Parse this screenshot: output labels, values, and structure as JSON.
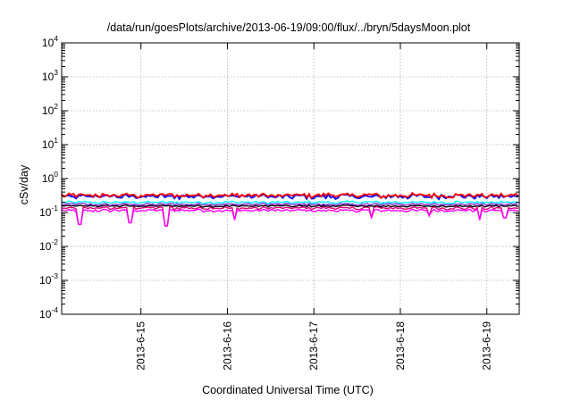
{
  "chart_data": {
    "type": "line",
    "title": "/data/run/goesPlots/archive/2013-06-19/09:00/flux/../bryn/5daysMoon.plot",
    "xlabel": "Coordinated Universal Time (UTC)",
    "ylabel": "cSv/day",
    "yscale": "log",
    "ylim": [
      0.0001,
      10000
    ],
    "xlim": [
      "2013-06-14T02:00",
      "2013-06-19T09:00"
    ],
    "grid": true,
    "y_ticks": [
      {
        "value": 0.0001,
        "base": "10",
        "exp": "-4"
      },
      {
        "value": 0.001,
        "base": "10",
        "exp": "-3"
      },
      {
        "value": 0.01,
        "base": "10",
        "exp": "-2"
      },
      {
        "value": 0.1,
        "base": "10",
        "exp": "-1"
      },
      {
        "value": 1,
        "base": "10",
        "exp": "0"
      },
      {
        "value": 10,
        "base": "10",
        "exp": "1"
      },
      {
        "value": 100,
        "base": "10",
        "exp": "2"
      },
      {
        "value": 1000,
        "base": "10",
        "exp": "3"
      },
      {
        "value": 10000,
        "base": "10",
        "exp": "4"
      }
    ],
    "x_ticks": [
      {
        "value": "2013-06-15T00:00",
        "label": "2013-6-15"
      },
      {
        "value": "2013-06-16T00:00",
        "label": "2013-6-16"
      },
      {
        "value": "2013-06-17T00:00",
        "label": "2013-6-17"
      },
      {
        "value": "2013-06-18T00:00",
        "label": "2013-6-18"
      },
      {
        "value": "2013-06-19T00:00",
        "label": "2013-6-19"
      }
    ],
    "series": [
      {
        "color": "#e0007a",
        "base": 0.135,
        "variability": 0.12,
        "dips": [
          [
            "2013-06-14T07:00",
            0.045
          ],
          [
            "2013-06-14T21:00",
            0.05
          ],
          [
            "2013-06-15T07:00",
            0.04
          ],
          [
            "2013-06-16T02:00",
            0.06
          ],
          [
            "2013-06-17T16:00",
            0.07
          ],
          [
            "2013-06-18T08:00",
            0.08
          ],
          [
            "2013-06-18T22:00",
            0.06
          ],
          [
            "2013-06-19T05:00",
            0.07
          ]
        ]
      },
      {
        "color": "#ff00ff",
        "base": 0.115,
        "variability": 0.1,
        "dips": [
          [
            "2013-06-14T07:00",
            0.045
          ],
          [
            "2013-06-14T21:00",
            0.05
          ],
          [
            "2013-06-15T07:00",
            0.04
          ],
          [
            "2013-06-16T02:00",
            0.06
          ],
          [
            "2013-06-17T16:00",
            0.07
          ],
          [
            "2013-06-18T08:00",
            0.08
          ],
          [
            "2013-06-18T22:00",
            0.06
          ],
          [
            "2013-06-19T05:00",
            0.07
          ]
        ]
      },
      {
        "color": "#000000",
        "base": 0.155,
        "variability": 0.08,
        "dips": []
      },
      {
        "color": "#8a2be2",
        "base": 0.175,
        "variability": 0.09,
        "dips": []
      },
      {
        "color": "#00ffff",
        "base": 0.2,
        "variability": 0.1,
        "dips": []
      },
      {
        "color": "#0000ff",
        "base": 0.3,
        "variability": 0.18,
        "dips": []
      },
      {
        "color": "#ff0000",
        "base": 0.32,
        "variability": 0.18,
        "dips": []
      }
    ]
  }
}
